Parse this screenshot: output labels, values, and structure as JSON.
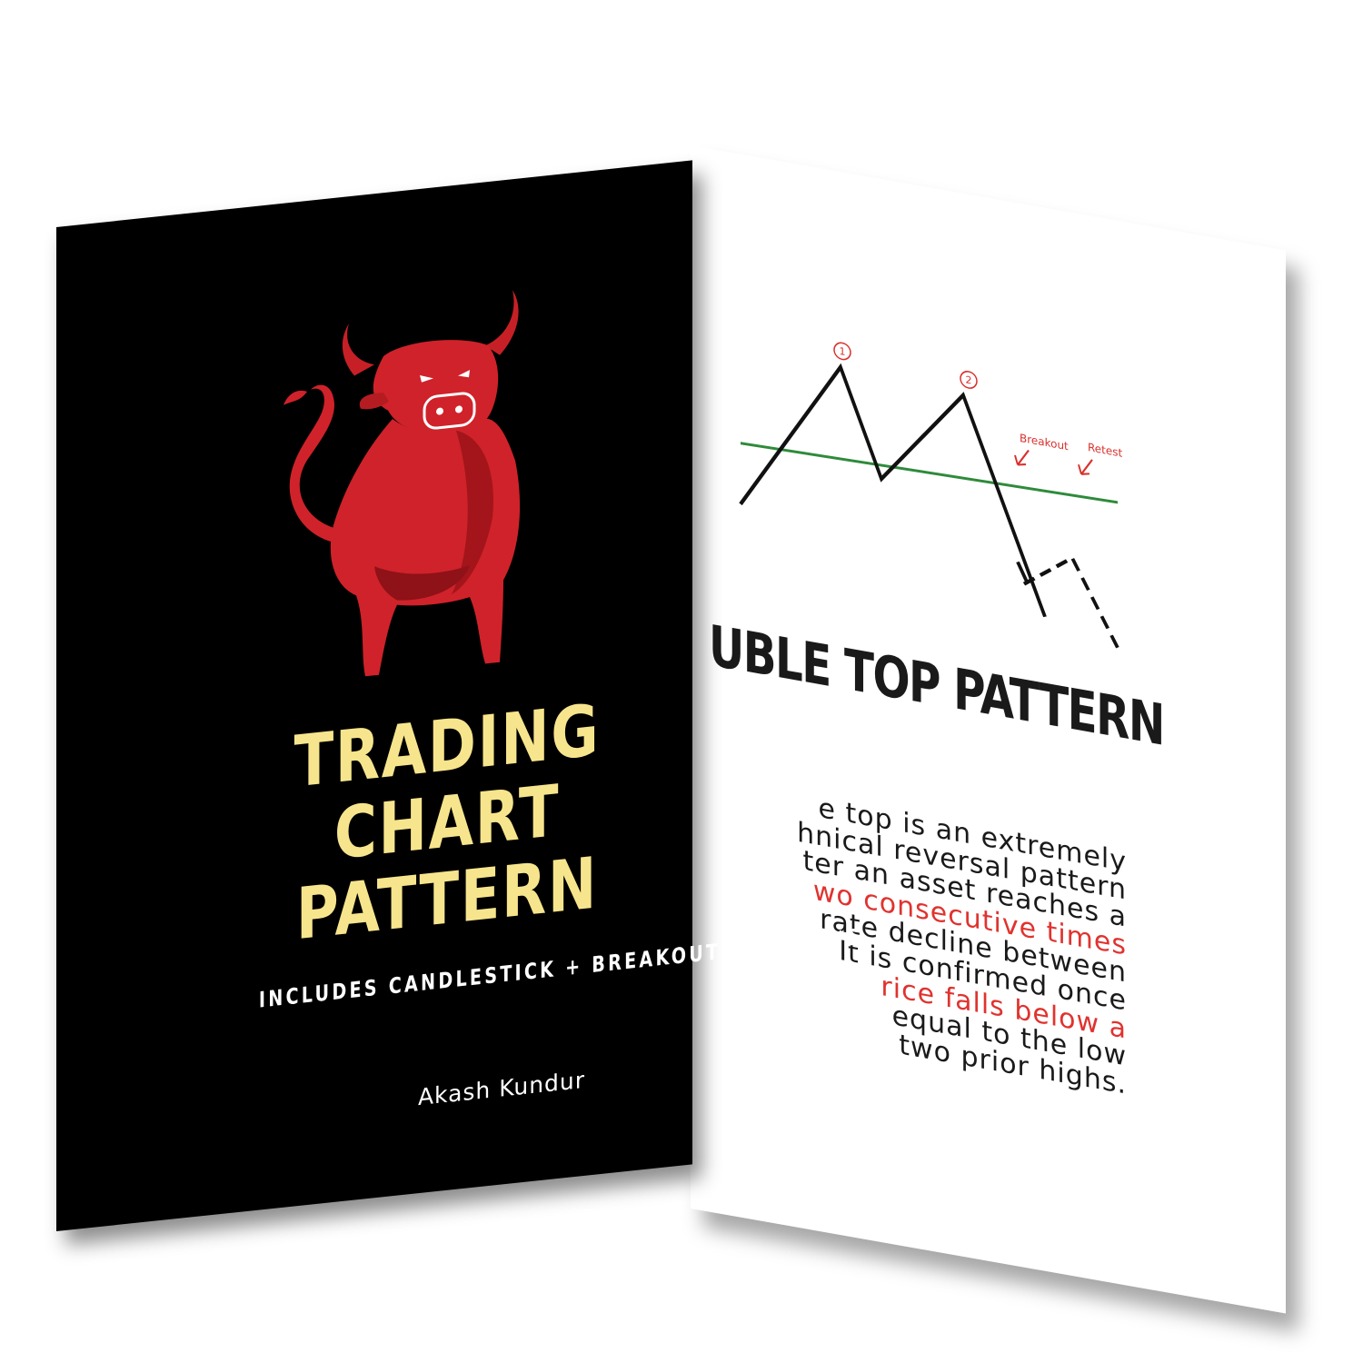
{
  "front_cover": {
    "title_line1": "TRADING CHART",
    "title_line2": "PATTERN",
    "subtitle": "INCLUDES CANDLESTICK + BREAKOUT PATTERN'S",
    "author": "Akash Kundur",
    "title_color": "#f7e58d",
    "background_color": "#000000",
    "illustration": "red-bull-icon"
  },
  "back_page": {
    "diagram": {
      "peak_label_1": "1",
      "peak_label_2": "2",
      "breakout_label": "Breakout",
      "retest_label": "Retest",
      "neckline_color": "#2e8b3a",
      "annotation_color": "#d9302c"
    },
    "heading": "UBLE TOP PATTERN",
    "body_lines": [
      {
        "text": "e top is an extremely",
        "highlight": false
      },
      {
        "text": "hnical reversal pattern",
        "highlight": false
      },
      {
        "text": "ter an asset reaches a",
        "highlight": false
      },
      {
        "text": "wo consecutive times",
        "highlight": true
      },
      {
        "text": "rate decline between",
        "highlight": false
      },
      {
        "text": "It is confirmed once",
        "highlight": false
      },
      {
        "text": "rice falls below a",
        "highlight": true
      },
      {
        "text": "equal to the low",
        "highlight": false
      },
      {
        "text": "two prior highs.",
        "highlight": false
      }
    ],
    "highlight_color": "#e0332f"
  }
}
